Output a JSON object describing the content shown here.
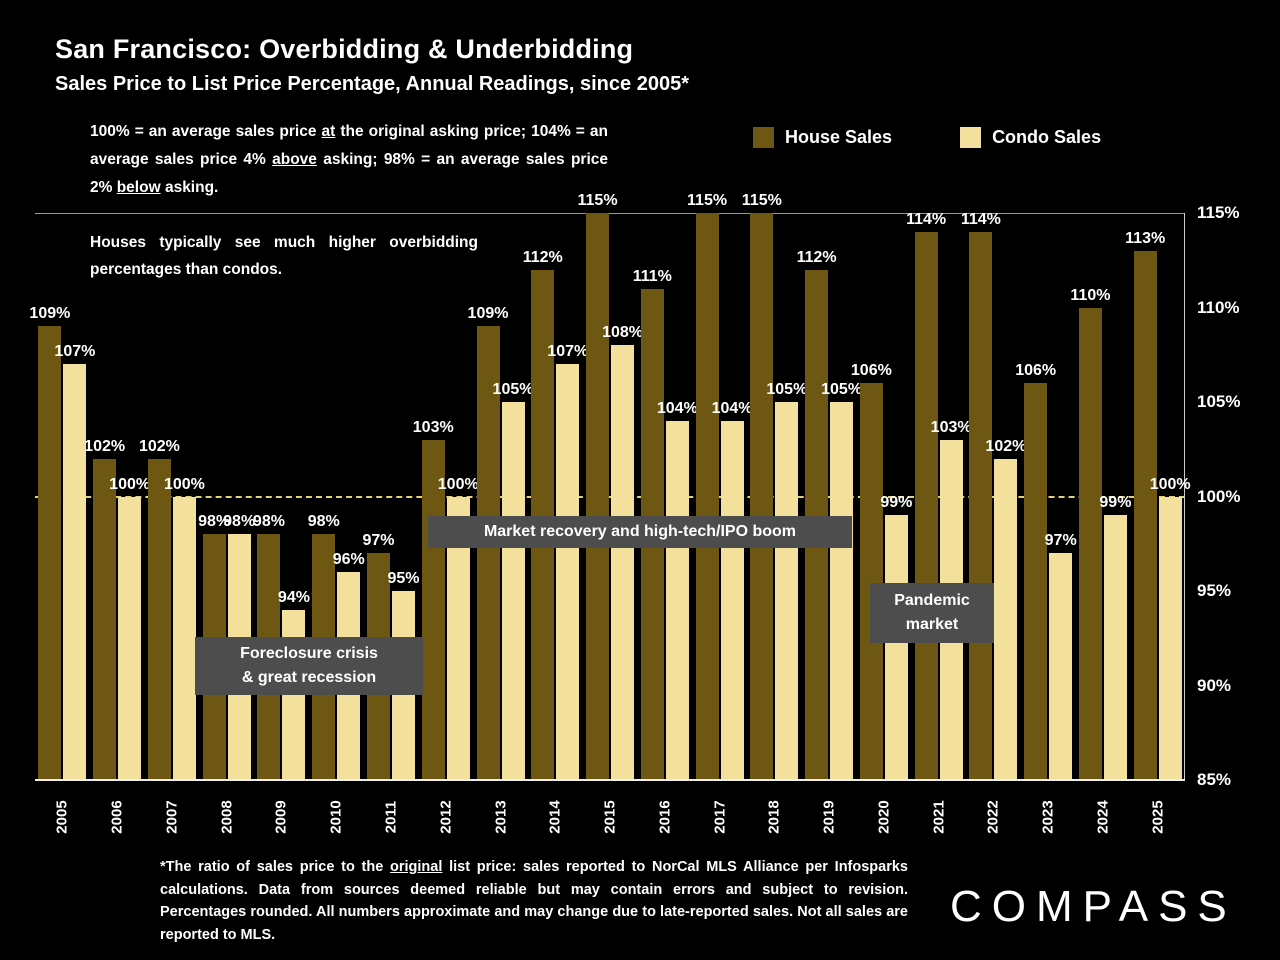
{
  "header": {
    "title": "San Francisco: Overbidding & Underbidding",
    "subtitle": "Sales Price to List Price Percentage, Annual Readings, since 2005*"
  },
  "explainer": {
    "p1": "100% = an average sales price ",
    "u1": "at",
    "p2": " the original asking price; 104% = an average sales price 4% ",
    "u2": "above",
    "p3": " asking; 98% = an average sales price 2% ",
    "u3": "below",
    "p4": " asking."
  },
  "explainer2": {
    "text": "Houses typically see much higher overbidding percentages than condos."
  },
  "legend": {
    "house_label": "House Sales",
    "condo_label": "Condo Sales"
  },
  "annotations": {
    "foreclosure": {
      "line1": "Foreclosure crisis",
      "line2": "& great recession"
    },
    "recovery": {
      "line1": "Market recovery and high-tech/IPO boom"
    },
    "pandemic": {
      "line1": "Pandemic",
      "line2": "market"
    }
  },
  "footnote": {
    "p1": "*The ratio of sales price to the ",
    "u1": "original",
    "p2": " list price: sales reported to NorCal MLS Alliance per Infosparks calculations. Data from sources deemed reliable but may contain errors and subject to revision. Percentages rounded. All numbers approximate and may change due to late-reported sales. Not all sales are reported to MLS."
  },
  "logo": {
    "text": "COMPASS"
  },
  "colors": {
    "background": "#000000",
    "house_bar": "#6d5712",
    "condo_bar": "#f3e09c",
    "reference_line": "#e3d27a",
    "annotation_bg": "#4d4d4d",
    "text": "#ffffff"
  },
  "chart_data": {
    "type": "bar",
    "title": "San Francisco: Overbidding & Underbidding",
    "subtitle": "Sales Price to List Price Percentage, Annual Readings, since 2005*",
    "categories": [
      "2005",
      "2006",
      "2007",
      "2008",
      "2009",
      "2010",
      "2011",
      "2012",
      "2013",
      "2014",
      "2015",
      "2016",
      "2017",
      "2018",
      "2019",
      "2020",
      "2021",
      "2022",
      "2023",
      "2024",
      "2025"
    ],
    "series": [
      {
        "name": "House Sales",
        "color": "#6d5712",
        "values": [
          109,
          102,
          102,
          98,
          98,
          98,
          97,
          103,
          109,
          112,
          115,
          111,
          115,
          115,
          112,
          106,
          114,
          114,
          106,
          110,
          113
        ]
      },
      {
        "name": "Condo Sales",
        "color": "#f3e09c",
        "values": [
          107,
          100,
          100,
          98,
          94,
          96,
          95,
          100,
          105,
          107,
          108,
          104,
          104,
          105,
          105,
          99,
          103,
          102,
          97,
          99,
          100
        ]
      }
    ],
    "value_suffix": "%",
    "ylim": [
      85,
      115
    ],
    "y_ticks": [
      115,
      110,
      105,
      100,
      95,
      90,
      85
    ],
    "y_axis_side": "right",
    "reference_line": 100,
    "x_tick_rotation_deg": 90,
    "grid": "top-line-and-100%-dashed-reference",
    "legend_position": "top-right",
    "data_labels": true
  }
}
